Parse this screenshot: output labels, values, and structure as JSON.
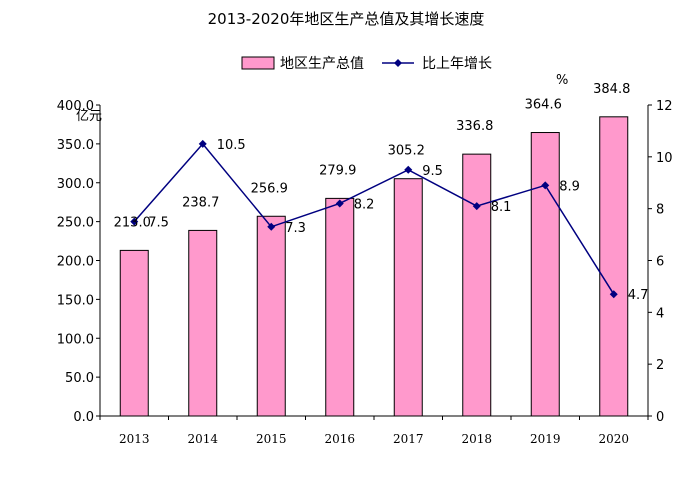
{
  "title": "2013-2020年地区生产总值及其增长速度",
  "chart_data": {
    "type": "bar",
    "title": "2013-2020年地区生产总值及其增长速度",
    "categories": [
      "2013",
      "2014",
      "2015",
      "2016",
      "2017",
      "2018",
      "2019",
      "2020"
    ],
    "series": [
      {
        "name": "地区生产总值",
        "type": "bar",
        "axis": "left",
        "color": "#ff99cc",
        "values": [
          213.0,
          238.7,
          256.9,
          279.9,
          305.2,
          336.8,
          364.6,
          384.8
        ],
        "labels": [
          "213.0",
          "238.7",
          "256.9",
          "279.9",
          "305.2",
          "336.8",
          "364.6",
          "384.8"
        ]
      },
      {
        "name": "比上年增长",
        "type": "line",
        "axis": "right",
        "color": "#000080",
        "values": [
          7.5,
          10.5,
          7.3,
          8.2,
          9.5,
          8.1,
          8.9,
          4.7
        ],
        "labels": [
          "7.5",
          "10.5",
          "7.3",
          "8.2",
          "9.5",
          "8.1",
          "8.9",
          "4.7"
        ]
      }
    ],
    "y_left": {
      "label": "亿元",
      "ylim": [
        0,
        400
      ],
      "ticks": [
        "0.0",
        "50.0",
        "100.0",
        "150.0",
        "200.0",
        "250.0",
        "300.0",
        "350.0",
        "400.0"
      ]
    },
    "y_right": {
      "label": "%",
      "ylim": [
        0,
        12
      ],
      "ticks": [
        "0",
        "2",
        "4",
        "6",
        "8",
        "10",
        "12"
      ]
    },
    "grid": false,
    "legend": "top"
  }
}
